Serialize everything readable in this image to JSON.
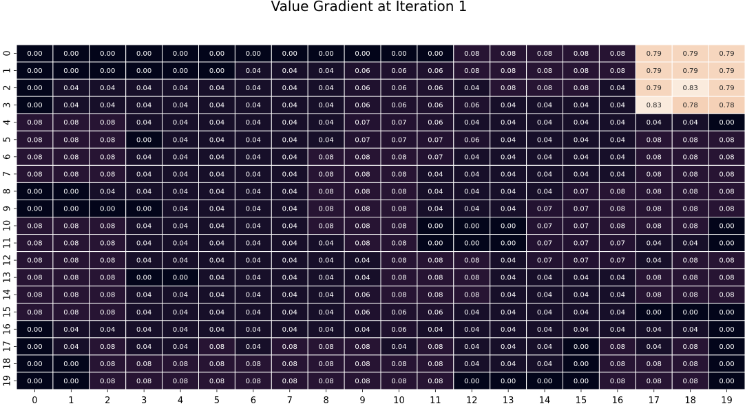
{
  "chart_data": {
    "type": "heatmap",
    "title": "Value Gradient at Iteration 1",
    "xlabel": "",
    "ylabel": "",
    "x_ticks": [
      "0",
      "1",
      "2",
      "3",
      "4",
      "5",
      "6",
      "7",
      "8",
      "9",
      "10",
      "11",
      "12",
      "13",
      "14",
      "15",
      "16",
      "17",
      "18",
      "19"
    ],
    "y_ticks": [
      "0",
      "1",
      "2",
      "3",
      "4",
      "5",
      "6",
      "7",
      "8",
      "9",
      "10",
      "11",
      "12",
      "13",
      "14",
      "15",
      "16",
      "17",
      "18",
      "19"
    ],
    "colormap": "rocket",
    "value_range": [
      0.0,
      0.83
    ],
    "values": [
      [
        0.0,
        0.0,
        0.0,
        0.0,
        0.0,
        0.0,
        0.0,
        0.0,
        0.0,
        0.0,
        0.0,
        0.0,
        0.08,
        0.08,
        0.08,
        0.08,
        0.08,
        0.79,
        0.79,
        0.79
      ],
      [
        0.0,
        0.0,
        0.0,
        0.0,
        0.0,
        0.0,
        0.04,
        0.04,
        0.04,
        0.06,
        0.06,
        0.06,
        0.08,
        0.08,
        0.08,
        0.08,
        0.08,
        0.79,
        0.79,
        0.79
      ],
      [
        0.0,
        0.04,
        0.04,
        0.04,
        0.04,
        0.04,
        0.04,
        0.04,
        0.04,
        0.06,
        0.06,
        0.06,
        0.04,
        0.08,
        0.08,
        0.08,
        0.04,
        0.79,
        0.83,
        0.79
      ],
      [
        0.0,
        0.04,
        0.04,
        0.04,
        0.04,
        0.04,
        0.04,
        0.04,
        0.04,
        0.06,
        0.06,
        0.06,
        0.06,
        0.04,
        0.04,
        0.04,
        0.04,
        0.83,
        0.78,
        0.78
      ],
      [
        0.08,
        0.08,
        0.08,
        0.04,
        0.04,
        0.04,
        0.04,
        0.04,
        0.04,
        0.07,
        0.07,
        0.06,
        0.04,
        0.04,
        0.04,
        0.04,
        0.04,
        0.04,
        0.04,
        0.0
      ],
      [
        0.08,
        0.08,
        0.08,
        0.0,
        0.04,
        0.04,
        0.04,
        0.04,
        0.04,
        0.07,
        0.07,
        0.07,
        0.06,
        0.04,
        0.04,
        0.04,
        0.04,
        0.08,
        0.08,
        0.08
      ],
      [
        0.08,
        0.08,
        0.08,
        0.04,
        0.04,
        0.04,
        0.04,
        0.04,
        0.08,
        0.08,
        0.08,
        0.07,
        0.04,
        0.04,
        0.04,
        0.04,
        0.04,
        0.08,
        0.08,
        0.08
      ],
      [
        0.08,
        0.08,
        0.08,
        0.04,
        0.04,
        0.04,
        0.04,
        0.04,
        0.08,
        0.08,
        0.08,
        0.04,
        0.04,
        0.04,
        0.04,
        0.04,
        0.04,
        0.08,
        0.08,
        0.08
      ],
      [
        0.0,
        0.0,
        0.04,
        0.04,
        0.04,
        0.04,
        0.04,
        0.04,
        0.08,
        0.08,
        0.08,
        0.04,
        0.04,
        0.04,
        0.04,
        0.07,
        0.08,
        0.08,
        0.08,
        0.08
      ],
      [
        0.0,
        0.0,
        0.0,
        0.0,
        0.04,
        0.04,
        0.04,
        0.04,
        0.08,
        0.08,
        0.08,
        0.04,
        0.04,
        0.04,
        0.07,
        0.07,
        0.08,
        0.08,
        0.08,
        0.08
      ],
      [
        0.08,
        0.08,
        0.08,
        0.04,
        0.04,
        0.04,
        0.04,
        0.04,
        0.08,
        0.08,
        0.08,
        0.0,
        0.0,
        0.0,
        0.07,
        0.07,
        0.08,
        0.08,
        0.08,
        0.0
      ],
      [
        0.08,
        0.08,
        0.08,
        0.04,
        0.04,
        0.04,
        0.04,
        0.04,
        0.04,
        0.08,
        0.08,
        0.0,
        0.0,
        0.0,
        0.07,
        0.07,
        0.07,
        0.04,
        0.04,
        0.0
      ],
      [
        0.08,
        0.08,
        0.08,
        0.04,
        0.04,
        0.04,
        0.04,
        0.04,
        0.04,
        0.04,
        0.08,
        0.08,
        0.08,
        0.04,
        0.07,
        0.07,
        0.07,
        0.04,
        0.08,
        0.08
      ],
      [
        0.08,
        0.08,
        0.08,
        0.0,
        0.0,
        0.04,
        0.04,
        0.04,
        0.04,
        0.04,
        0.08,
        0.08,
        0.08,
        0.04,
        0.04,
        0.04,
        0.04,
        0.08,
        0.08,
        0.08
      ],
      [
        0.08,
        0.08,
        0.08,
        0.04,
        0.04,
        0.04,
        0.04,
        0.04,
        0.04,
        0.06,
        0.08,
        0.08,
        0.08,
        0.04,
        0.04,
        0.04,
        0.04,
        0.08,
        0.08,
        0.08
      ],
      [
        0.08,
        0.08,
        0.08,
        0.04,
        0.04,
        0.04,
        0.04,
        0.04,
        0.04,
        0.06,
        0.06,
        0.06,
        0.04,
        0.04,
        0.04,
        0.04,
        0.04,
        0.0,
        0.0,
        0.0
      ],
      [
        0.0,
        0.04,
        0.04,
        0.04,
        0.04,
        0.04,
        0.04,
        0.04,
        0.04,
        0.04,
        0.06,
        0.04,
        0.04,
        0.04,
        0.04,
        0.04,
        0.04,
        0.04,
        0.04,
        0.0
      ],
      [
        0.0,
        0.04,
        0.08,
        0.04,
        0.04,
        0.08,
        0.04,
        0.08,
        0.08,
        0.08,
        0.04,
        0.08,
        0.04,
        0.04,
        0.04,
        0.0,
        0.08,
        0.04,
        0.08,
        0.0
      ],
      [
        0.0,
        0.0,
        0.08,
        0.08,
        0.08,
        0.08,
        0.08,
        0.08,
        0.08,
        0.08,
        0.08,
        0.08,
        0.04,
        0.04,
        0.04,
        0.0,
        0.08,
        0.08,
        0.08,
        0.0
      ],
      [
        0.0,
        0.0,
        0.08,
        0.08,
        0.08,
        0.08,
        0.08,
        0.08,
        0.08,
        0.08,
        0.08,
        0.08,
        0.0,
        0.0,
        0.0,
        0.0,
        0.08,
        0.08,
        0.08,
        0.0
      ]
    ],
    "grid": true,
    "annotated": true,
    "colorbar": false
  }
}
